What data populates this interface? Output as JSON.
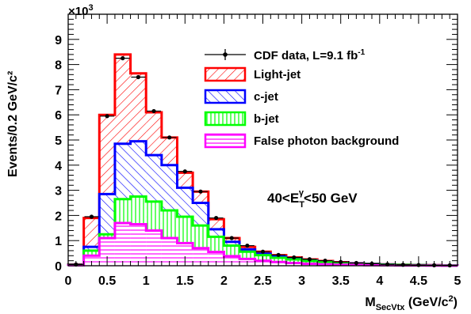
{
  "chart_data": {
    "type": "histogram",
    "xlabel": {
      "main": "M",
      "sub": "SecVtx",
      "rest": " (GeV/c",
      "sup": "2",
      "close": ")"
    },
    "ylabel": "Events/0.2 GeV/c²",
    "y_exponent": {
      "base": "×10",
      "sup": "3"
    },
    "xlim": [
      0,
      5
    ],
    "ylim": [
      0,
      10000
    ],
    "x_ticks": [
      "0",
      "0.5",
      "1",
      "1.5",
      "2",
      "2.5",
      "3",
      "3.5",
      "4",
      "4.5",
      "5"
    ],
    "x_tick_values": [
      0,
      0.5,
      1,
      1.5,
      2,
      2.5,
      3,
      3.5,
      4,
      4.5,
      5
    ],
    "y_ticks": [
      "0",
      "1",
      "2",
      "3",
      "4",
      "5",
      "6",
      "7",
      "8",
      "9"
    ],
    "y_tick_values": [
      0,
      1000,
      2000,
      3000,
      4000,
      5000,
      6000,
      7000,
      8000,
      9000
    ],
    "annotation": {
      "pre": "40<E",
      "sub": "T",
      "sup": "γ",
      "post": "<50 GeV"
    },
    "bin_edges": [
      0,
      0.2,
      0.4,
      0.6,
      0.8,
      1.0,
      1.2,
      1.4,
      1.6,
      1.8,
      2.0,
      2.2,
      2.4,
      2.6,
      2.8,
      3.0,
      3.2,
      3.4,
      3.6,
      3.8,
      4.0,
      4.2,
      4.4,
      4.6,
      4.8,
      5.0
    ],
    "series": [
      {
        "name": "Light-jet",
        "color": "#ff0000",
        "hatch": "diagonal-up",
        "values": [
          50,
          1900,
          6000,
          8400,
          7650,
          6100,
          5100,
          3700,
          2950,
          1850,
          1100,
          750,
          560,
          420,
          330,
          250,
          190,
          140,
          100,
          80,
          55,
          40,
          30,
          22,
          15
        ]
      },
      {
        "name": "c-jet",
        "color": "#0000ff",
        "hatch": "diagonal-down",
        "values": [
          40,
          750,
          2850,
          4850,
          4950,
          4400,
          4000,
          3100,
          2500,
          1450,
          950,
          650,
          480,
          360,
          280,
          210,
          160,
          120,
          90,
          70,
          50,
          35,
          25,
          18,
          12
        ]
      },
      {
        "name": "b-jet",
        "color": "#00ff00",
        "hatch": "vertical",
        "values": [
          30,
          600,
          1250,
          2650,
          2750,
          2550,
          2200,
          1950,
          1600,
          1150,
          800,
          560,
          420,
          320,
          250,
          190,
          150,
          110,
          80,
          60,
          45,
          30,
          22,
          15,
          10
        ]
      },
      {
        "name": "False photon background",
        "color": "#ff00ff",
        "hatch": "horizontal",
        "values": [
          20,
          400,
          1100,
          1700,
          1650,
          1400,
          1100,
          900,
          700,
          550,
          380,
          270,
          200,
          150,
          110,
          80,
          60,
          45,
          35,
          25,
          18,
          13,
          10,
          7,
          5
        ]
      }
    ],
    "data": {
      "name": "CDF data, L=9.1 fb⁻¹",
      "legend": {
        "pre": "CDF data, L=9.1 fb",
        "sup": "-1"
      },
      "x": [
        0.1,
        0.3,
        0.5,
        0.7,
        0.9,
        1.1,
        1.3,
        1.5,
        1.7,
        1.9,
        2.1,
        2.3,
        2.5,
        2.7,
        2.9,
        3.1,
        3.3,
        3.5,
        3.7,
        3.9,
        4.1,
        4.3,
        4.5,
        4.7,
        4.9
      ],
      "y": [
        50,
        1950,
        5950,
        8250,
        7500,
        6150,
        5100,
        3750,
        2950,
        1900,
        1100,
        800,
        560,
        430,
        330,
        260,
        200,
        150,
        110,
        80,
        55,
        40,
        30,
        20,
        15
      ]
    },
    "legend_position": "top-right",
    "grid": false
  }
}
